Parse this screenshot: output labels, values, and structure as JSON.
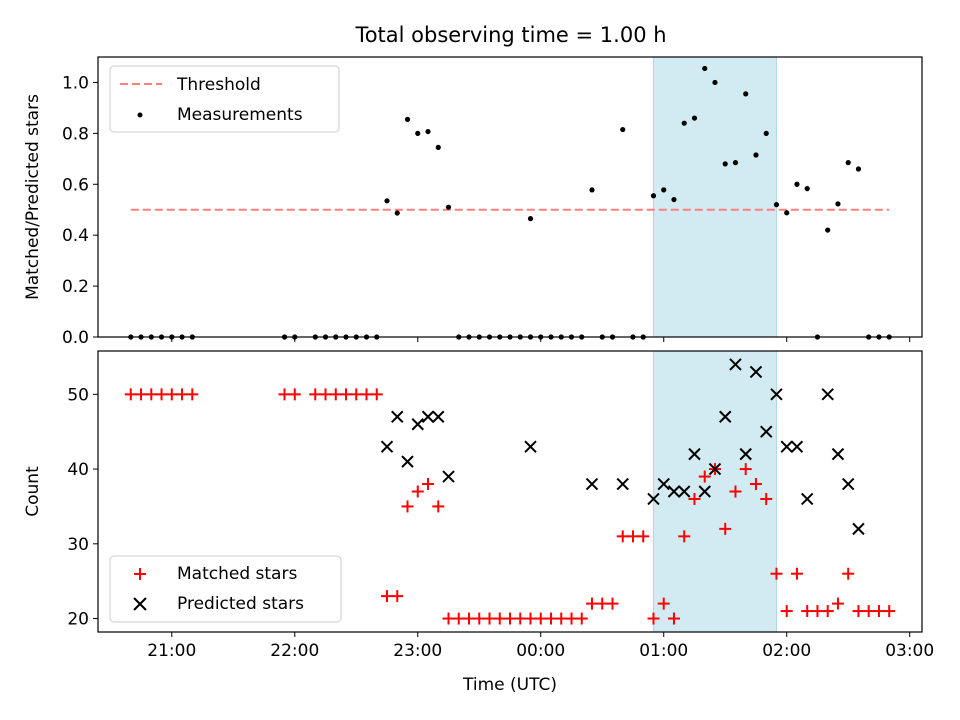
{
  "figure": {
    "title": "Total observing time = 1.00 h"
  },
  "colors": {
    "threshold": "#ff7f7f",
    "measurement": "#000000",
    "matched": "#ff0000",
    "predicted": "#000000",
    "highlight": "#add8e6"
  },
  "chart_data": [
    {
      "type": "scatter",
      "ylabel": "Matched/Predicted stars",
      "ylim": [
        0,
        1.1
      ],
      "yticks": [
        0.0,
        0.2,
        0.4,
        0.6,
        0.8,
        1.0
      ],
      "ytick_labels": [
        "0.0",
        "0.2",
        "0.4",
        "0.6",
        "0.8",
        "1.0"
      ],
      "xlim": [
        "20:24",
        "03:06"
      ],
      "xticks": [
        "21:00",
        "22:00",
        "23:00",
        "00:00",
        "01:00",
        "02:00",
        "03:00"
      ],
      "highlight_span": [
        "00:55",
        "01:55"
      ],
      "legend": {
        "placement": "upper-left",
        "entries": [
          {
            "label": "Threshold",
            "marker": "dashed-line"
          },
          {
            "label": "Measurements",
            "marker": "dot"
          }
        ]
      },
      "threshold": {
        "name": "Threshold",
        "x_start": "20:40",
        "x_end": "02:50",
        "y": 0.5
      },
      "series": [
        {
          "name": "Measurements",
          "marker": "dot",
          "points": [
            [
              "20:40",
              0
            ],
            [
              "20:45",
              0
            ],
            [
              "20:50",
              0
            ],
            [
              "20:55",
              0
            ],
            [
              "21:00",
              0
            ],
            [
              "21:05",
              0
            ],
            [
              "21:10",
              0
            ],
            [
              "21:55",
              0
            ],
            [
              "22:00",
              0
            ],
            [
              "22:10",
              0
            ],
            [
              "22:15",
              0
            ],
            [
              "22:20",
              0
            ],
            [
              "22:25",
              0
            ],
            [
              "22:30",
              0
            ],
            [
              "22:35",
              0
            ],
            [
              "22:40",
              0
            ],
            [
              "22:45",
              0.535
            ],
            [
              "22:50",
              0.487
            ],
            [
              "22:55",
              0.855
            ],
            [
              "23:00",
              0.8
            ],
            [
              "23:05",
              0.807
            ],
            [
              "23:10",
              0.745
            ],
            [
              "23:15",
              0.51
            ],
            [
              "23:20",
              0
            ],
            [
              "23:25",
              0
            ],
            [
              "23:30",
              0
            ],
            [
              "23:35",
              0
            ],
            [
              "23:40",
              0
            ],
            [
              "23:45",
              0
            ],
            [
              "23:50",
              0
            ],
            [
              "23:55",
              0
            ],
            [
              "23:55",
              0.465
            ],
            [
              "00:00",
              0
            ],
            [
              "00:05",
              0
            ],
            [
              "00:10",
              0
            ],
            [
              "00:15",
              0
            ],
            [
              "00:20",
              0
            ],
            [
              "00:25",
              0.578
            ],
            [
              "00:30",
              0
            ],
            [
              "00:35",
              0
            ],
            [
              "00:40",
              0.815
            ],
            [
              "00:45",
              0
            ],
            [
              "00:50",
              0
            ],
            [
              "00:55",
              0.555
            ],
            [
              "01:00",
              0.578
            ],
            [
              "01:05",
              0.54
            ],
            [
              "01:10",
              0.84
            ],
            [
              "01:15",
              0.86
            ],
            [
              "01:20",
              1.055
            ],
            [
              "01:25",
              1.0
            ],
            [
              "01:30",
              0.68
            ],
            [
              "01:35",
              0.685
            ],
            [
              "01:40",
              0.955
            ],
            [
              "01:45",
              0.715
            ],
            [
              "01:50",
              0.8
            ],
            [
              "01:55",
              0.52
            ],
            [
              "02:00",
              0.488
            ],
            [
              "02:05",
              0.6
            ],
            [
              "02:10",
              0.583
            ],
            [
              "02:15",
              0
            ],
            [
              "02:20",
              0.42
            ],
            [
              "02:25",
              0.523
            ],
            [
              "02:30",
              0.685
            ],
            [
              "02:35",
              0.66
            ],
            [
              "02:40",
              0
            ],
            [
              "02:45",
              0
            ],
            [
              "02:50",
              0
            ]
          ]
        }
      ]
    },
    {
      "type": "scatter",
      "ylabel": "Count",
      "xlabel": "Time (UTC)",
      "ylim": [
        18.2,
        55.8
      ],
      "yticks": [
        20,
        30,
        40,
        50
      ],
      "ytick_labels": [
        "20",
        "30",
        "40",
        "50"
      ],
      "xlim": [
        "20:24",
        "03:06"
      ],
      "xticks": [
        "21:00",
        "22:00",
        "23:00",
        "00:00",
        "01:00",
        "02:00",
        "03:00"
      ],
      "xtick_labels": [
        "21:00",
        "22:00",
        "23:00",
        "00:00",
        "01:00",
        "02:00",
        "03:00"
      ],
      "highlight_span": [
        "00:55",
        "01:55"
      ],
      "legend": {
        "placement": "lower-left",
        "entries": [
          {
            "label": "Matched stars",
            "marker": "plus"
          },
          {
            "label": "Predicted stars",
            "marker": "x"
          }
        ]
      },
      "series": [
        {
          "name": "Matched stars",
          "marker": "plus",
          "points": [
            [
              "20:40",
              50
            ],
            [
              "20:45",
              50
            ],
            [
              "20:50",
              50
            ],
            [
              "20:55",
              50
            ],
            [
              "21:00",
              50
            ],
            [
              "21:05",
              50
            ],
            [
              "21:10",
              50
            ],
            [
              "21:55",
              50
            ],
            [
              "22:00",
              50
            ],
            [
              "22:10",
              50
            ],
            [
              "22:15",
              50
            ],
            [
              "22:20",
              50
            ],
            [
              "22:25",
              50
            ],
            [
              "22:30",
              50
            ],
            [
              "22:35",
              50
            ],
            [
              "22:40",
              50
            ],
            [
              "22:45",
              23
            ],
            [
              "22:50",
              23
            ],
            [
              "22:55",
              35
            ],
            [
              "23:00",
              37
            ],
            [
              "23:05",
              38
            ],
            [
              "23:10",
              35
            ],
            [
              "23:15",
              20
            ],
            [
              "23:20",
              20
            ],
            [
              "23:25",
              20
            ],
            [
              "23:30",
              20
            ],
            [
              "23:35",
              20
            ],
            [
              "23:40",
              20
            ],
            [
              "23:45",
              20
            ],
            [
              "23:50",
              20
            ],
            [
              "23:55",
              20
            ],
            [
              "00:00",
              20
            ],
            [
              "00:05",
              20
            ],
            [
              "00:10",
              20
            ],
            [
              "00:15",
              20
            ],
            [
              "00:20",
              20
            ],
            [
              "00:25",
              22
            ],
            [
              "00:30",
              22
            ],
            [
              "00:35",
              22
            ],
            [
              "00:40",
              31
            ],
            [
              "00:45",
              31
            ],
            [
              "00:50",
              31
            ],
            [
              "00:55",
              20
            ],
            [
              "01:00",
              22
            ],
            [
              "01:05",
              20
            ],
            [
              "01:10",
              31
            ],
            [
              "01:15",
              36
            ],
            [
              "01:20",
              39
            ],
            [
              "01:25",
              40
            ],
            [
              "01:30",
              32
            ],
            [
              "01:35",
              37
            ],
            [
              "01:40",
              40
            ],
            [
              "01:45",
              38
            ],
            [
              "01:50",
              36
            ],
            [
              "01:55",
              26
            ],
            [
              "02:00",
              21
            ],
            [
              "02:05",
              26
            ],
            [
              "02:10",
              21
            ],
            [
              "02:15",
              21
            ],
            [
              "02:20",
              21
            ],
            [
              "02:25",
              22
            ],
            [
              "02:30",
              26
            ],
            [
              "02:35",
              21
            ],
            [
              "02:40",
              21
            ],
            [
              "02:45",
              21
            ],
            [
              "02:50",
              21
            ]
          ]
        },
        {
          "name": "Predicted stars",
          "marker": "x",
          "points": [
            [
              "22:45",
              43
            ],
            [
              "22:50",
              47
            ],
            [
              "22:55",
              41
            ],
            [
              "23:00",
              46
            ],
            [
              "23:05",
              47
            ],
            [
              "23:10",
              47
            ],
            [
              "23:15",
              39
            ],
            [
              "23:55",
              43
            ],
            [
              "00:25",
              38
            ],
            [
              "00:40",
              38
            ],
            [
              "00:55",
              36
            ],
            [
              "01:00",
              38
            ],
            [
              "01:05",
              37
            ],
            [
              "01:10",
              37
            ],
            [
              "01:15",
              42
            ],
            [
              "01:20",
              37
            ],
            [
              "01:25",
              40
            ],
            [
              "01:30",
              47
            ],
            [
              "01:35",
              54
            ],
            [
              "01:40",
              42
            ],
            [
              "01:45",
              53
            ],
            [
              "01:50",
              45
            ],
            [
              "01:55",
              50
            ],
            [
              "02:00",
              43
            ],
            [
              "02:05",
              43
            ],
            [
              "02:10",
              36
            ],
            [
              "02:20",
              50
            ],
            [
              "02:25",
              42
            ],
            [
              "02:30",
              38
            ],
            [
              "02:35",
              32
            ]
          ]
        }
      ]
    }
  ]
}
